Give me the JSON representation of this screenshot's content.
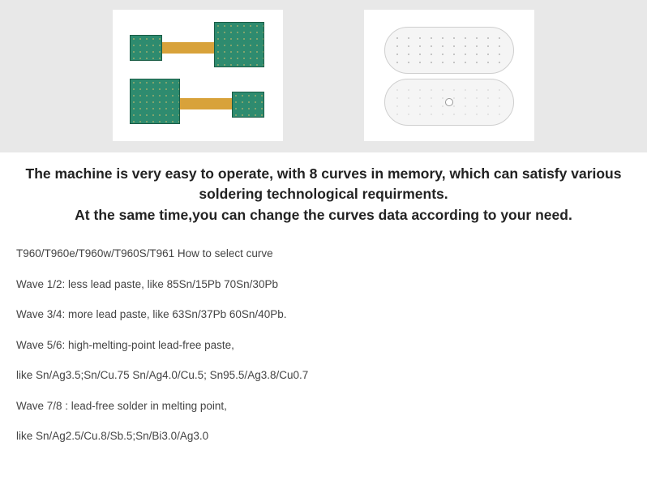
{
  "headline": {
    "line1": "The machine is very easy to operate, with 8 curves in memory, which can satisfy various soldering technological requirments.",
    "line2": "At the same time,you can change the curves data according to your need."
  },
  "lines": [
    "T960/T960e/T960w/T960S/T961  How to select curve",
    "Wave 1/2: less lead paste, like 85Sn/15Pb 70Sn/30Pb",
    "Wave 3/4: more lead paste, like 63Sn/37Pb  60Sn/40Pb.",
    "Wave 5/6: high-melting-point lead-free paste,",
    "like Sn/Ag3.5;Sn/Cu.75 Sn/Ag4.0/Cu.5; Sn95.5/Ag3.8/Cu0.7",
    "Wave 7/8 : lead-free solder in melting point,",
    "like Sn/Ag2.5/Cu.8/Sb.5;Sn/Bi3.0/Ag3.0"
  ],
  "panel": {
    "background_color": "#e8e8e8",
    "img_box_background": "#ffffff"
  },
  "left_image": {
    "description": "flex-rigid-pcb",
    "board_color": "#2e8b6f",
    "flex_color": "#d8a23a"
  },
  "right_image": {
    "description": "aluminum-pcb",
    "board_color": "#f5f5f5",
    "border_color": "#cfcfcf"
  }
}
